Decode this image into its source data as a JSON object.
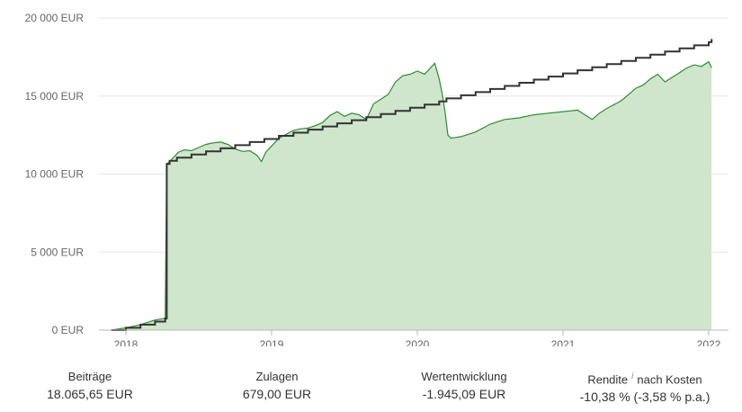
{
  "chart_data": {
    "type": "area",
    "y_ticks": [
      "0 EUR",
      "5 000 EUR",
      "10 000 EUR",
      "15 000 EUR",
      "20 000 EUR"
    ],
    "ylim": [
      0,
      20000
    ],
    "x_ticks": [
      "2018",
      "2019",
      "2020",
      "2021",
      "2022"
    ],
    "x_tick_values": [
      2018.0,
      2019.0,
      2020.0,
      2021.0,
      2022.0
    ],
    "xlim": [
      2017.82,
      2022.05
    ],
    "grid": true,
    "colors": {
      "area_fill": "#cfe6cd",
      "area_line": "#2e8b2e",
      "step_line": "#333333"
    },
    "series": [
      {
        "kind": "area",
        "x": [
          2017.9,
          2018.0,
          2018.1,
          2018.2,
          2018.27,
          2018.28,
          2018.3,
          2018.36,
          2018.4,
          2018.45,
          2018.5,
          2018.55,
          2018.6,
          2018.65,
          2018.7,
          2018.75,
          2018.8,
          2018.85,
          2018.9,
          2018.93,
          2018.96,
          2019.0,
          2019.05,
          2019.1,
          2019.15,
          2019.2,
          2019.25,
          2019.3,
          2019.35,
          2019.4,
          2019.45,
          2019.5,
          2019.55,
          2019.6,
          2019.65,
          2019.7,
          2019.75,
          2019.8,
          2019.85,
          2019.9,
          2019.95,
          2020.0,
          2020.05,
          2020.09,
          2020.12,
          2020.15,
          2020.17,
          2020.19,
          2020.21,
          2020.23,
          2020.3,
          2020.4,
          2020.5,
          2020.6,
          2020.7,
          2020.8,
          2020.9,
          2021.0,
          2021.1,
          2021.15,
          2021.2,
          2021.25,
          2021.3,
          2021.4,
          2021.5,
          2021.55,
          2021.6,
          2021.65,
          2021.7,
          2021.75,
          2021.8,
          2021.85,
          2021.9,
          2021.95,
          2022.0,
          2022.02
        ],
        "values": [
          0,
          150,
          350,
          650,
          750,
          10650,
          10800,
          11400,
          11550,
          11500,
          11700,
          11900,
          12000,
          12050,
          11900,
          11600,
          11450,
          11500,
          11200,
          10800,
          11400,
          11800,
          12300,
          12550,
          12800,
          12900,
          12950,
          13100,
          13300,
          13750,
          14000,
          13700,
          13900,
          13800,
          13500,
          14500,
          14800,
          15100,
          15900,
          16300,
          16400,
          16600,
          16400,
          16800,
          17100,
          16100,
          15200,
          14000,
          12500,
          12300,
          12400,
          12700,
          13200,
          13500,
          13600,
          13800,
          13900,
          14000,
          14100,
          13800,
          13500,
          13900,
          14200,
          14700,
          15500,
          15700,
          16100,
          16400,
          15900,
          16200,
          16500,
          16800,
          17000,
          16900,
          17200,
          16800
        ]
      },
      {
        "kind": "step",
        "x": [
          2017.9,
          2018.0,
          2018.1,
          2018.2,
          2018.27,
          2018.28,
          2018.3,
          2018.35,
          2018.45,
          2018.55,
          2018.65,
          2018.75,
          2018.85,
          2018.95,
          2019.05,
          2019.15,
          2019.25,
          2019.35,
          2019.45,
          2019.55,
          2019.65,
          2019.75,
          2019.85,
          2019.95,
          2020.05,
          2020.15,
          2020.2,
          2020.3,
          2020.4,
          2020.5,
          2020.6,
          2020.7,
          2020.8,
          2020.9,
          2021.0,
          2021.1,
          2021.2,
          2021.3,
          2021.4,
          2021.5,
          2021.6,
          2021.7,
          2021.8,
          2021.9,
          2022.0,
          2022.02
        ],
        "values": [
          0,
          150,
          350,
          550,
          750,
          10650,
          10850,
          11050,
          11250,
          11450,
          11650,
          11850,
          12050,
          12250,
          12450,
          12650,
          12850,
          13050,
          13250,
          13450,
          13650,
          13850,
          14050,
          14250,
          14450,
          14650,
          14850,
          15050,
          15250,
          15450,
          15650,
          15850,
          16050,
          16250,
          16450,
          16650,
          16850,
          17050,
          17250,
          17450,
          17650,
          17850,
          18050,
          18250,
          18450,
          18650
        ]
      }
    ]
  },
  "stats": [
    {
      "label": "Beiträge",
      "value": "18.065,65 EUR"
    },
    {
      "label": "Zulagen",
      "value": "679,00 EUR"
    },
    {
      "label": "Wertentwicklung",
      "value": "-1.945,09 EUR"
    },
    {
      "label": "Rendite",
      "info": "i",
      "label_suffix": "nach Kosten",
      "value": "-10,38 % (-3,58 % p.a.)"
    }
  ]
}
